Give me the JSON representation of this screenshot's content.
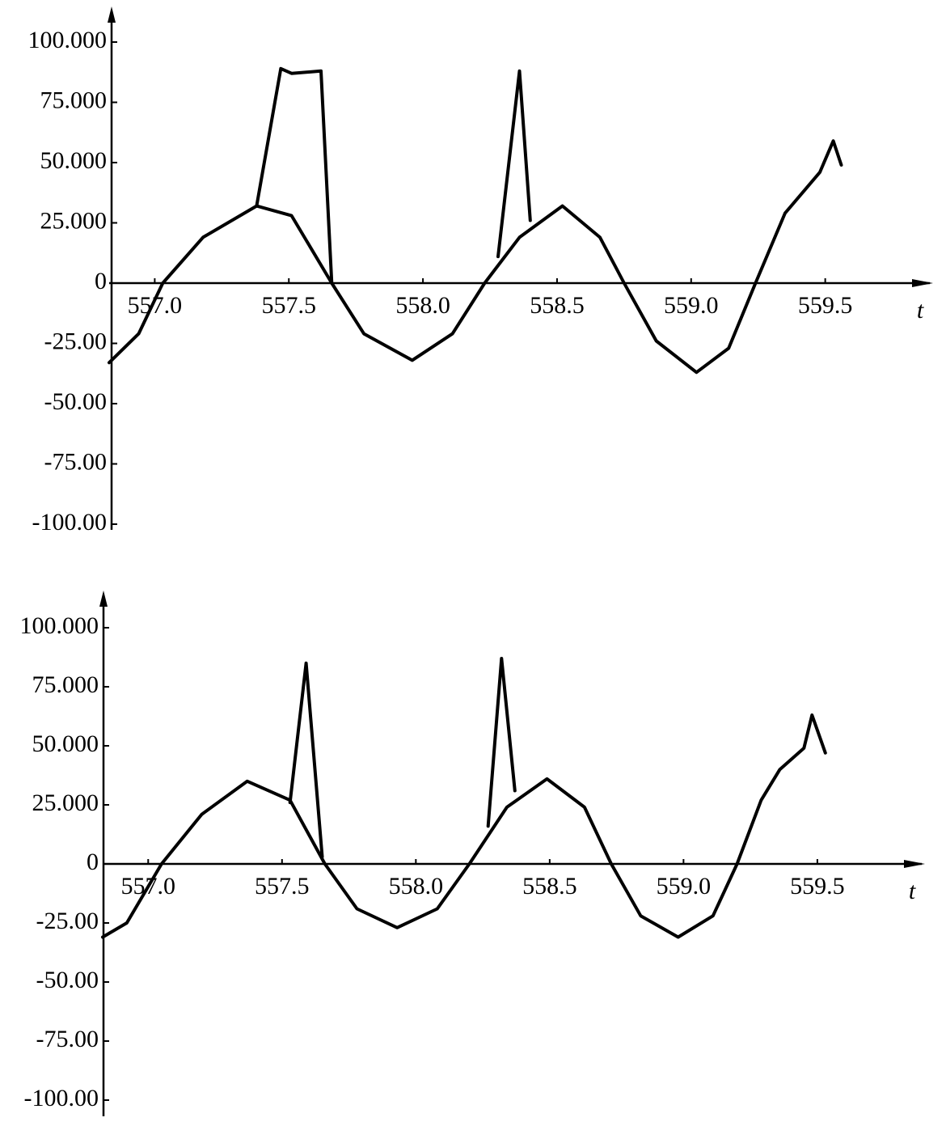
{
  "chart_data": [
    {
      "type": "line",
      "xlabel": "t",
      "xlim": [
        556.83,
        559.89
      ],
      "ylim": [
        -100,
        100
      ],
      "xticks": [
        {
          "value": 557.0,
          "label": "557.0"
        },
        557.5,
        {
          "value": 558.0,
          "label": "558.0"
        },
        558.5,
        {
          "value": 559.0,
          "label": "559.0"
        },
        559.5
      ],
      "yticks": [
        {
          "value": 100,
          "label": "100.000"
        },
        {
          "value": 75,
          "label": "75.000"
        },
        {
          "value": 50,
          "label": "50.000"
        },
        {
          "value": 25,
          "label": "25.000"
        },
        0,
        {
          "value": -25,
          "label": "-25.00"
        },
        {
          "value": -50,
          "label": "-50.00"
        },
        {
          "value": -75,
          "label": "-75.00"
        },
        {
          "value": -100,
          "label": "-100.00"
        }
      ],
      "series": [
        {
          "color": "#000000",
          "x": [
            556.83,
            556.94,
            557.03,
            557.18,
            557.38,
            557.51,
            557.66,
            557.78,
            557.96,
            558.11,
            558.23,
            558.36,
            558.52,
            558.66,
            558.75,
            558.87,
            559.02,
            559.14,
            559.24,
            559.35,
            559.48,
            559.53,
            559.56
          ],
          "values": [
            -33,
            -21,
            0,
            19,
            32,
            28,
            0,
            -21,
            -32,
            -21,
            0,
            19,
            32,
            19,
            0,
            -24,
            -37,
            -27,
            0,
            29,
            46,
            59,
            49
          ]
        },
        {
          "color": "#000000",
          "x": [
            557.38,
            557.47,
            557.51,
            557.62,
            557.66
          ],
          "values": [
            32,
            89,
            87,
            88,
            0
          ]
        },
        {
          "color": "#000000",
          "x": [
            558.28,
            558.36,
            558.4
          ],
          "values": [
            11,
            88,
            26
          ]
        }
      ]
    },
    {
      "type": "line",
      "xlabel": "t",
      "xlim": [
        556.83,
        559.89
      ],
      "ylim": [
        -100,
        100
      ],
      "xticks": [
        {
          "value": 557.0,
          "label": "557.0"
        },
        557.5,
        {
          "value": 558.0,
          "label": "558.0"
        },
        558.5,
        {
          "value": 559.0,
          "label": "559.0"
        },
        559.5
      ],
      "yticks": [
        {
          "value": 100,
          "label": "100.000"
        },
        {
          "value": 75,
          "label": "75.000"
        },
        {
          "value": 50,
          "label": "50.000"
        },
        {
          "value": 25,
          "label": "25.000"
        },
        0,
        {
          "value": -25,
          "label": "-25.00"
        },
        {
          "value": -50,
          "label": "-50.00"
        },
        {
          "value": -75,
          "label": "-75.00"
        },
        {
          "value": -100,
          "label": "-100.00"
        }
      ],
      "series": [
        {
          "color": "#000000",
          "x": [
            556.83,
            556.92,
            557.05,
            557.2,
            557.37,
            557.53,
            557.66,
            557.78,
            557.93,
            558.08,
            558.2,
            558.34,
            558.49,
            558.63,
            558.73,
            558.84,
            558.98,
            559.11,
            559.2,
            559.29,
            559.36,
            559.45,
            559.48,
            559.53
          ],
          "values": [
            -31,
            -25,
            0,
            21,
            35,
            27,
            0,
            -19,
            -27,
            -19,
            0,
            24,
            36,
            24,
            0,
            -22,
            -31,
            -22,
            0,
            27,
            40,
            49,
            63,
            47
          ]
        },
        {
          "color": "#000000",
          "x": [
            557.53,
            557.59,
            557.65
          ],
          "values": [
            26,
            85,
            3
          ]
        },
        {
          "color": "#000000",
          "x": [
            558.27,
            558.32,
            558.37
          ],
          "values": [
            16,
            87,
            31
          ]
        }
      ]
    }
  ]
}
